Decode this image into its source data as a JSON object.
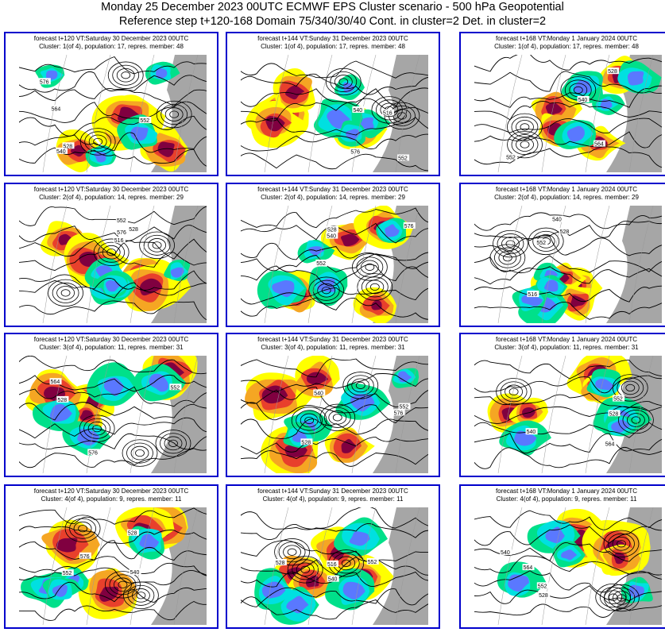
{
  "header": {
    "line1": "Monday 25 December 2023 00UTC ECMWF EPS Cluster scenario - 500 hPa Geopotential",
    "line2": "Reference step t+120-168 Domain 75/340/30/40 Cont. in cluster=2 Det. in cluster=2"
  },
  "colors": {
    "frame": "#0000cc",
    "positive_strong": "#800040",
    "positive_mid": "#e8402c",
    "positive_low": "#f5a623",
    "positive_weak": "#ffff00",
    "negative_weak": "#00e08a",
    "negative_mid": "#00e0e0",
    "negative_strong": "#5a78ff",
    "land_outside": "#a6a6a6"
  },
  "panels": [
    {
      "forecast": "forecast t+120 VT:Saturday 30 December 2023 00UTC",
      "cluster": "Cluster: 1(of 4), population: 17, repres. member: 48",
      "labels": [
        "552",
        "540",
        "528",
        "576",
        "564"
      ]
    },
    {
      "forecast": "forecast t+144 VT:Sunday 31 December 2023 00UTC",
      "cluster": "Cluster: 1(of 4), population: 17, repres. member: 48",
      "labels": [
        "540",
        "552",
        "576",
        "516"
      ]
    },
    {
      "forecast": "forecast t+168 VT:Monday 1 January 2024 00UTC",
      "cluster": "Cluster: 1(of 4), population: 17, repres. member: 48",
      "labels": [
        "540",
        "528",
        "552",
        "564"
      ]
    },
    {
      "forecast": "forecast t+120 VT:Saturday 30 December 2023 00UTC",
      "cluster": "Cluster: 2(of 4), population: 14, repres. member: 29",
      "labels": [
        "516",
        "528",
        "552",
        "576"
      ]
    },
    {
      "forecast": "forecast t+144 VT:Sunday 31 December 2023 00UTC",
      "cluster": "Cluster: 2(of 4), population: 14, repres. member: 29",
      "labels": [
        "528",
        "540",
        "576",
        "552"
      ]
    },
    {
      "forecast": "forecast t+168 VT:Monday 1 January 2024 00UTC",
      "cluster": "Cluster: 2(of 4), population: 14, repres. member: 29",
      "labels": [
        "540",
        "552",
        "528",
        "516"
      ]
    },
    {
      "forecast": "forecast t+120 VT:Saturday 30 December 2023 00UTC",
      "cluster": "Cluster: 3(of 4), population: 11, repres. member: 31",
      "labels": [
        "576",
        "528",
        "552",
        "564"
      ]
    },
    {
      "forecast": "forecast t+144 VT:Sunday 31 December 2023 00UTC",
      "cluster": "Cluster: 3(of 4), population: 11, repres. member: 31",
      "labels": [
        "528",
        "552",
        "540",
        "576"
      ]
    },
    {
      "forecast": "forecast t+168 VT:Monday 1 January 2024 00UTC",
      "cluster": "Cluster: 3(of 4), population: 11, repres. member: 31",
      "labels": [
        "540",
        "528",
        "552",
        "564"
      ]
    },
    {
      "forecast": "forecast t+120 VT:Saturday 30 December 2023 00UTC",
      "cluster": "Cluster: 4(of 4), population: 9, repres. member: 11",
      "labels": [
        "552",
        "540",
        "576",
        "528"
      ]
    },
    {
      "forecast": "forecast t+144 VT:Sunday 31 December 2023 00UTC",
      "cluster": "Cluster: 4(of 4), population: 9, repres. member: 11",
      "labels": [
        "528",
        "540",
        "552",
        "516"
      ]
    },
    {
      "forecast": "forecast t+168 VT:Monday 1 January 2024 00UTC",
      "cluster": "Cluster: 4(of 4), population: 9, repres. member: 11",
      "labels": [
        "540",
        "552",
        "564",
        "528"
      ]
    }
  ]
}
